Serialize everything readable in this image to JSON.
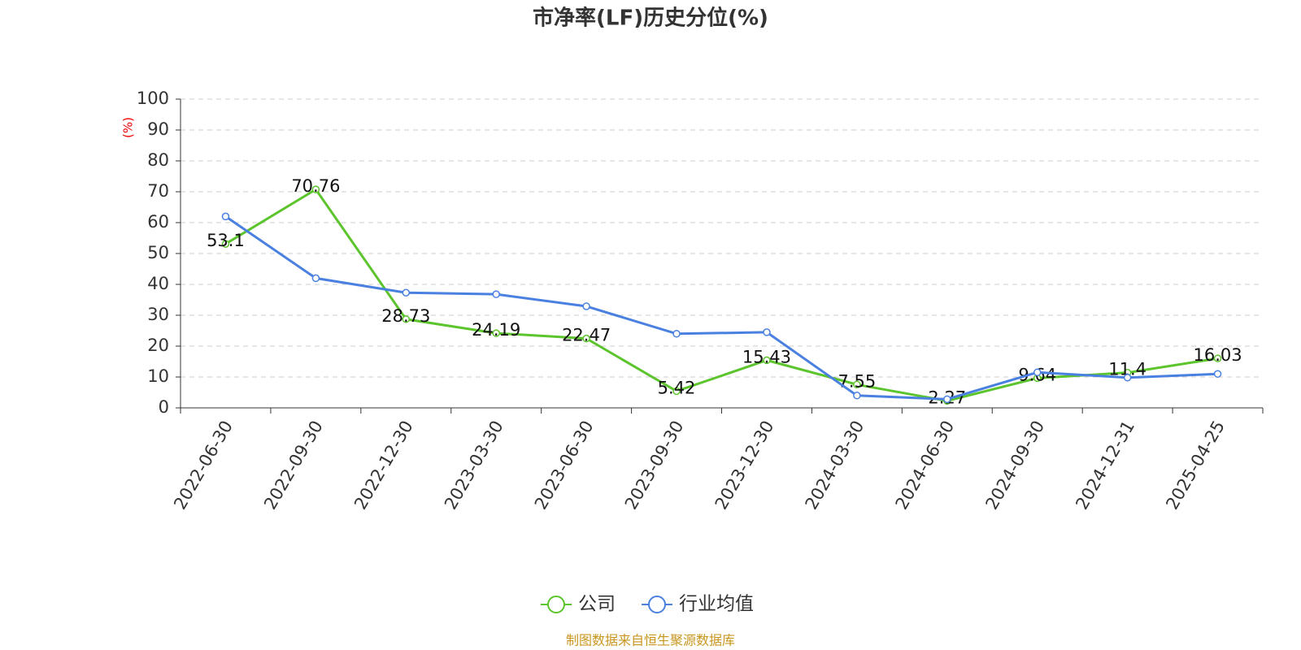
{
  "chart_data": {
    "type": "line",
    "title": "市净率(LF)历史分位(%)",
    "y_label": "(%)",
    "categories": [
      "2022-06-30",
      "2022-09-30",
      "2022-12-30",
      "2023-03-30",
      "2023-06-30",
      "2023-09-30",
      "2023-12-30",
      "2024-03-30",
      "2024-06-30",
      "2024-09-30",
      "2024-12-31",
      "2025-04-25"
    ],
    "series": [
      {
        "name": "公司",
        "color": "#5cc42c",
        "values": [
          53.1,
          70.76,
          28.73,
          24.19,
          22.47,
          5.42,
          15.43,
          7.55,
          2.27,
          9.64,
          11.4,
          16.03
        ],
        "show_labels": true
      },
      {
        "name": "行业均值",
        "color": "#4a80e0",
        "values": [
          62,
          42,
          37.3,
          36.8,
          32.9,
          24,
          24.5,
          4,
          2.8,
          11.5,
          9.8,
          11
        ],
        "show_labels": false
      }
    ],
    "ylim": [
      0,
      100
    ],
    "yticks": [
      0,
      10,
      20,
      30,
      40,
      50,
      60,
      70,
      80,
      90,
      100
    ],
    "grid": true,
    "legend": "bottom",
    "source": "制图数据来自恒生聚源数据库"
  }
}
